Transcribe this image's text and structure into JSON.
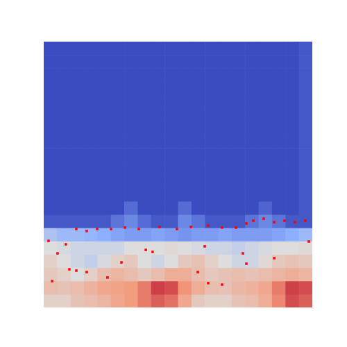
{
  "chart_data": {
    "type": "heatmap",
    "xlim": [
      0,
      20
    ],
    "ylim": [
      0,
      20
    ],
    "tick_labels": false,
    "grid": false,
    "zlim": [
      0,
      1
    ],
    "z": [
      [
        0.55,
        0.55,
        0.6,
        0.62,
        0.65,
        0.7,
        0.74,
        0.8,
        0.85,
        0.82,
        0.7,
        0.58,
        0.55,
        0.55,
        0.6,
        0.62,
        0.68,
        0.78,
        0.88,
        0.85
      ],
      [
        0.62,
        0.6,
        0.62,
        0.66,
        0.7,
        0.72,
        0.74,
        0.8,
        0.9,
        0.88,
        0.76,
        0.68,
        0.62,
        0.6,
        0.64,
        0.66,
        0.7,
        0.8,
        0.9,
        0.88
      ],
      [
        0.58,
        0.55,
        0.5,
        0.55,
        0.62,
        0.65,
        0.62,
        0.58,
        0.62,
        0.68,
        0.68,
        0.62,
        0.58,
        0.6,
        0.62,
        0.6,
        0.62,
        0.65,
        0.68,
        0.65
      ],
      [
        0.55,
        0.5,
        0.45,
        0.42,
        0.48,
        0.55,
        0.58,
        0.5,
        0.45,
        0.5,
        0.58,
        0.6,
        0.55,
        0.5,
        0.45,
        0.45,
        0.52,
        0.58,
        0.6,
        0.58
      ],
      [
        0.5,
        0.48,
        0.45,
        0.45,
        0.45,
        0.45,
        0.5,
        0.5,
        0.5,
        0.52,
        0.5,
        0.48,
        0.45,
        0.45,
        0.42,
        0.45,
        0.48,
        0.5,
        0.5,
        0.52
      ],
      [
        0.35,
        0.3,
        0.3,
        0.28,
        0.25,
        0.22,
        0.2,
        0.2,
        0.22,
        0.2,
        0.18,
        0.2,
        0.2,
        0.22,
        0.2,
        0.2,
        0.2,
        0.22,
        0.25,
        0.3
      ],
      [
        0.03,
        0.03,
        0.03,
        0.03,
        0.03,
        0.1,
        0.15,
        0.08,
        0.03,
        0.03,
        0.15,
        0.1,
        0.03,
        0.03,
        0.03,
        0.1,
        0.15,
        0.1,
        0.03,
        0.03
      ],
      [
        0,
        0,
        0,
        0,
        0,
        0,
        0.08,
        0,
        0,
        0,
        0.08,
        0,
        0,
        0,
        0,
        0,
        0.06,
        0,
        0,
        0.03
      ],
      [
        0,
        0,
        0,
        0,
        0,
        0,
        0,
        0,
        0,
        0,
        0,
        0,
        0,
        0,
        0,
        0,
        0,
        0,
        0,
        0.03
      ],
      [
        0,
        0,
        0,
        0,
        0,
        0,
        0,
        0,
        0,
        0,
        0,
        0,
        0,
        0,
        0,
        0,
        0,
        0,
        0,
        0.03
      ],
      [
        0,
        0,
        0,
        0,
        0,
        0,
        0,
        0,
        0,
        0,
        0,
        0,
        0,
        0,
        0,
        0,
        0,
        0,
        0,
        0.03
      ],
      [
        0,
        0,
        0,
        0,
        0,
        0,
        0,
        0,
        0,
        0,
        0,
        0,
        0,
        0,
        0,
        0,
        0,
        0,
        0,
        0.03
      ],
      [
        0,
        0,
        0,
        0,
        0,
        0,
        0,
        0,
        0,
        0,
        0,
        0,
        0,
        0,
        0,
        0,
        0,
        0,
        0,
        0.03
      ],
      [
        0,
        0,
        0,
        0,
        0,
        0,
        0,
        0,
        0,
        0,
        0,
        0,
        0,
        0,
        0,
        0,
        0,
        0,
        0,
        0.03
      ],
      [
        0,
        0,
        0,
        0,
        0,
        0,
        0,
        0,
        0,
        0,
        0,
        0,
        0,
        0,
        0,
        0,
        0,
        0,
        0,
        0.03
      ],
      [
        0,
        0,
        0,
        0,
        0,
        0,
        0,
        0,
        0,
        0,
        0,
        0,
        0,
        0,
        0,
        0,
        0,
        0,
        0,
        0.03
      ],
      [
        0,
        0,
        0,
        0,
        0,
        0,
        0,
        0,
        0,
        0,
        0,
        0,
        0,
        0,
        0,
        0,
        0,
        0,
        0,
        0.03
      ],
      [
        0,
        0,
        0,
        0,
        0,
        0,
        0,
        0,
        0,
        0,
        0,
        0,
        0,
        0,
        0,
        0,
        0,
        0,
        0,
        0.03
      ],
      [
        0,
        0,
        0,
        0,
        0,
        0,
        0,
        0,
        0,
        0,
        0,
        0,
        0,
        0,
        0,
        0,
        0,
        0,
        0,
        0.03
      ],
      [
        0,
        0,
        0,
        0,
        0,
        0,
        0,
        0,
        0,
        0,
        0,
        0,
        0,
        0,
        0,
        0,
        0,
        0,
        0,
        0.03
      ]
    ],
    "series": [
      {
        "color": "#ff0000",
        "marker": "square",
        "x": [
          0.36,
          2.43,
          3.2,
          3.98,
          5.01,
          6.05,
          7.08,
          8.63,
          9.92,
          10.96,
          12.25,
          13.28,
          14.31,
          15.09,
          15.61,
          16.38,
          17.16,
          17.93,
          18.71,
          19.48,
          1.03,
          1.91,
          2.43,
          3.2,
          0.62,
          4.75,
          5.79,
          7.6,
          8.11,
          11.99,
          11.47,
          12.25,
          13.28,
          14.83,
          15.09,
          17.16,
          19.74,
          1.65
        ],
        "y": [
          5.01,
          5.9,
          5.75,
          5.9,
          5.9,
          6.01,
          5.9,
          6.06,
          5.9,
          6.06,
          6.16,
          6.01,
          6.01,
          6.32,
          6.53,
          6.68,
          6.42,
          6.53,
          6.42,
          6.53,
          4.07,
          2.87,
          2.77,
          2.66,
          1.98,
          2.25,
          3.39,
          4.33,
          4.18,
          4.6,
          2.66,
          1.83,
          1.72,
          4.07,
          3.29,
          3.71,
          4.96,
          4.75
        ]
      }
    ]
  }
}
